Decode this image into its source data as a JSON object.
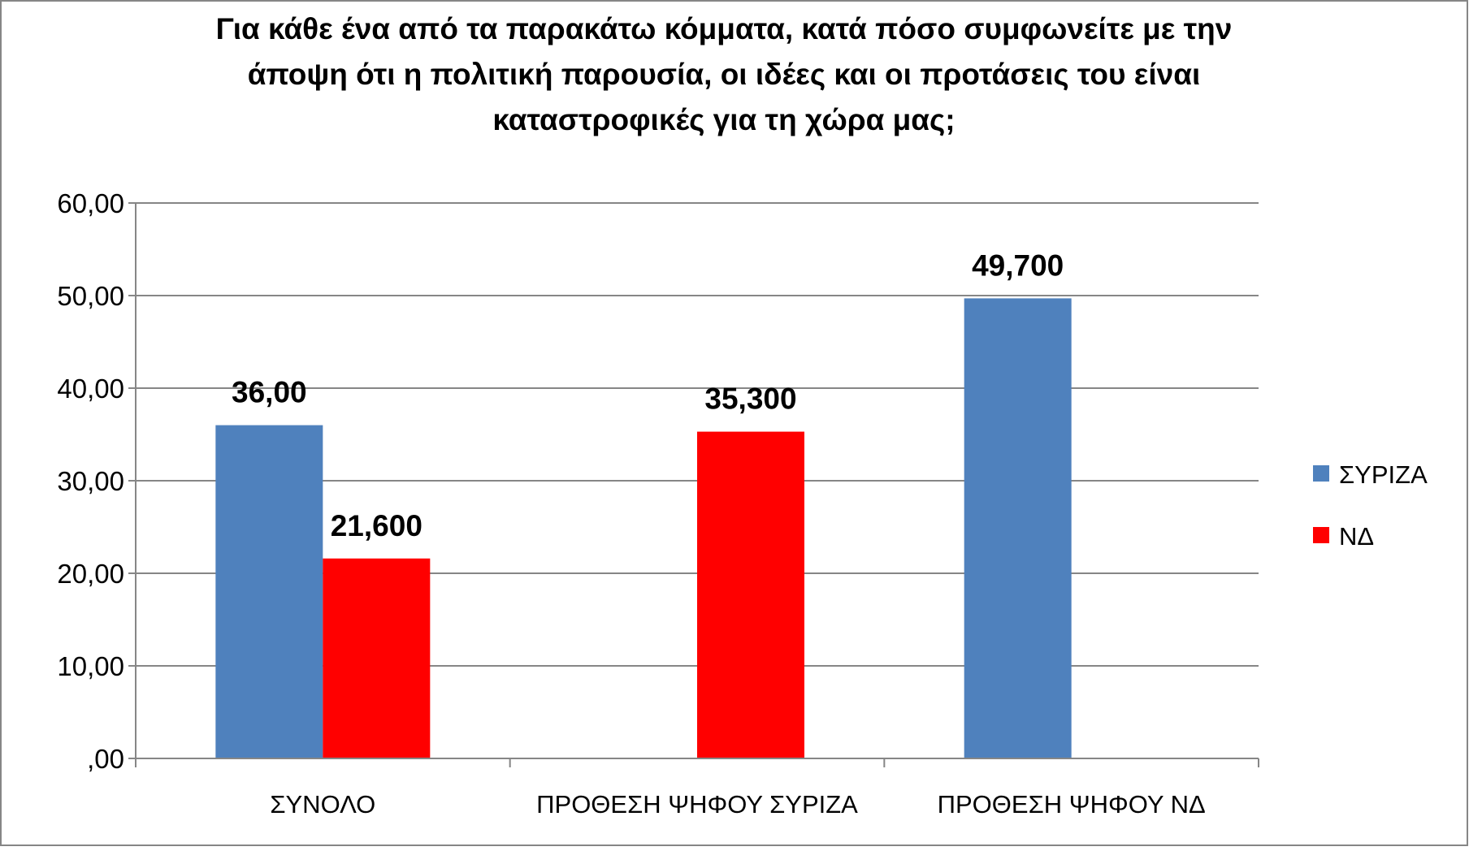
{
  "chart_data": {
    "type": "bar",
    "title_lines": [
      "Για κάθε ένα από τα παρακάτω κόμματα, κατά πόσο συμφωνείτε με την",
      "άποψη ότι η πολιτική παρουσία, οι ιδέες και οι προτάσεις του είναι",
      "καταστροφικές για τη χώρα μας;"
    ],
    "categories": [
      "ΣΥΝΟΛΟ",
      "ΠΡΟΘΕΣΗ ΨΗΦΟΥ ΣΥΡΙΖΑ",
      "ΠΡΟΘΕΣΗ ΨΗΦΟΥ ΝΔ"
    ],
    "series": [
      {
        "name": "ΣΥΡΙΖΑ",
        "color": "#4f81bd",
        "values": [
          36.0,
          null,
          49.7
        ],
        "labels": [
          "36,00",
          null,
          "49,700"
        ]
      },
      {
        "name": "ΝΔ",
        "color": "#ff0000",
        "values": [
          21.6,
          35.3,
          null
        ],
        "labels": [
          "21,600",
          "35,300",
          null
        ]
      }
    ],
    "ylim": [
      0,
      60
    ],
    "yticks": [
      0,
      10,
      20,
      30,
      40,
      50,
      60
    ],
    "ytick_labels": [
      ",00",
      "10,00",
      "20,00",
      "30,00",
      "40,00",
      "50,00",
      "60,00"
    ],
    "grid": true,
    "legend_position": "right",
    "xlabel": "",
    "ylabel": ""
  }
}
